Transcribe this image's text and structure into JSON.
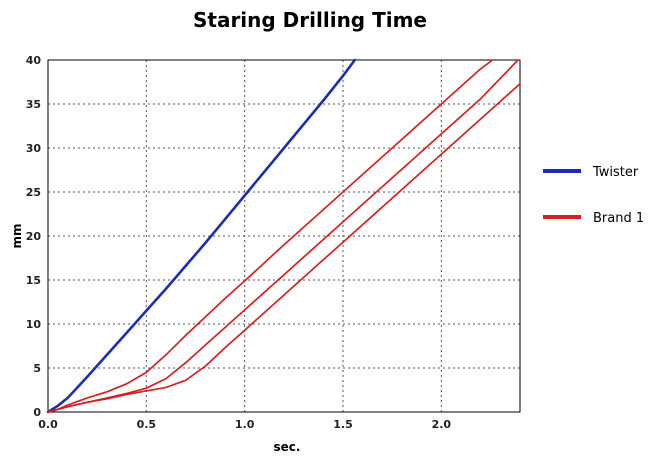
{
  "chart_data": {
    "type": "line",
    "title": "Staring Drilling Time",
    "xlabel": "sec.",
    "ylabel": "mm",
    "xlim": [
      0.0,
      2.4
    ],
    "ylim": [
      0,
      40
    ],
    "x_ticks": [
      "0.0",
      "0.5",
      "1.0",
      "1.5",
      "2.0"
    ],
    "x_tick_values": [
      0.0,
      0.5,
      1.0,
      1.5,
      2.0
    ],
    "y_ticks": [
      "0",
      "5",
      "10",
      "15",
      "20",
      "25",
      "30",
      "35",
      "40"
    ],
    "y_tick_values": [
      0,
      5,
      10,
      15,
      20,
      25,
      30,
      35,
      40
    ],
    "grid": true,
    "grid_style": "dotted",
    "legend_position": "right",
    "legend": [
      {
        "label": "Twister",
        "color": "#1a2fb0"
      },
      {
        "label": "Brand 1",
        "color": "#d42020"
      }
    ],
    "series": [
      {
        "name": "Twister",
        "color": "#1a2fb0",
        "x": [
          0.0,
          0.05,
          0.1,
          0.2,
          0.3,
          0.4,
          0.5,
          0.6,
          0.7,
          0.8,
          0.9,
          1.0,
          1.1,
          1.2,
          1.3,
          1.4,
          1.5,
          1.56
        ],
        "y": [
          0.0,
          0.7,
          1.6,
          4.0,
          6.5,
          9.0,
          11.5,
          14.0,
          16.6,
          19.2,
          21.9,
          24.6,
          27.3,
          30.0,
          32.7,
          35.4,
          38.2,
          40.0
        ]
      },
      {
        "name": "Brand 1",
        "color": "#d42020",
        "x": [
          0.0,
          0.05,
          0.1,
          0.2,
          0.3,
          0.4,
          0.5,
          0.6,
          0.7,
          0.8,
          0.9,
          1.0,
          1.2,
          1.4,
          1.6,
          1.8,
          2.0,
          2.2,
          2.26
        ],
        "y": [
          0.0,
          0.3,
          0.8,
          1.6,
          2.3,
          3.2,
          4.5,
          6.5,
          8.7,
          10.8,
          12.9,
          14.9,
          19.0,
          23.0,
          27.0,
          31.0,
          35.0,
          39.0,
          40.0
        ]
      },
      {
        "name": "Brand 1",
        "color": "#d42020",
        "x": [
          0.0,
          0.05,
          0.1,
          0.2,
          0.3,
          0.4,
          0.5,
          0.6,
          0.7,
          0.8,
          0.9,
          1.0,
          1.2,
          1.4,
          1.6,
          1.8,
          2.0,
          2.2,
          2.39
        ],
        "y": [
          0.0,
          0.3,
          0.6,
          1.1,
          1.6,
          2.1,
          2.7,
          3.8,
          5.6,
          7.6,
          9.6,
          11.6,
          15.6,
          19.6,
          23.6,
          27.6,
          31.6,
          35.6,
          40.0
        ]
      },
      {
        "name": "Brand 1",
        "color": "#d42020",
        "x": [
          0.0,
          0.05,
          0.1,
          0.2,
          0.3,
          0.4,
          0.5,
          0.6,
          0.7,
          0.8,
          0.9,
          1.0,
          1.2,
          1.4,
          1.6,
          1.8,
          2.0,
          2.2,
          2.4
        ],
        "y": [
          0.0,
          0.3,
          0.6,
          1.1,
          1.5,
          2.0,
          2.4,
          2.8,
          3.6,
          5.2,
          7.3,
          9.3,
          13.3,
          17.3,
          21.3,
          25.3,
          29.3,
          33.3,
          37.3
        ]
      }
    ]
  }
}
